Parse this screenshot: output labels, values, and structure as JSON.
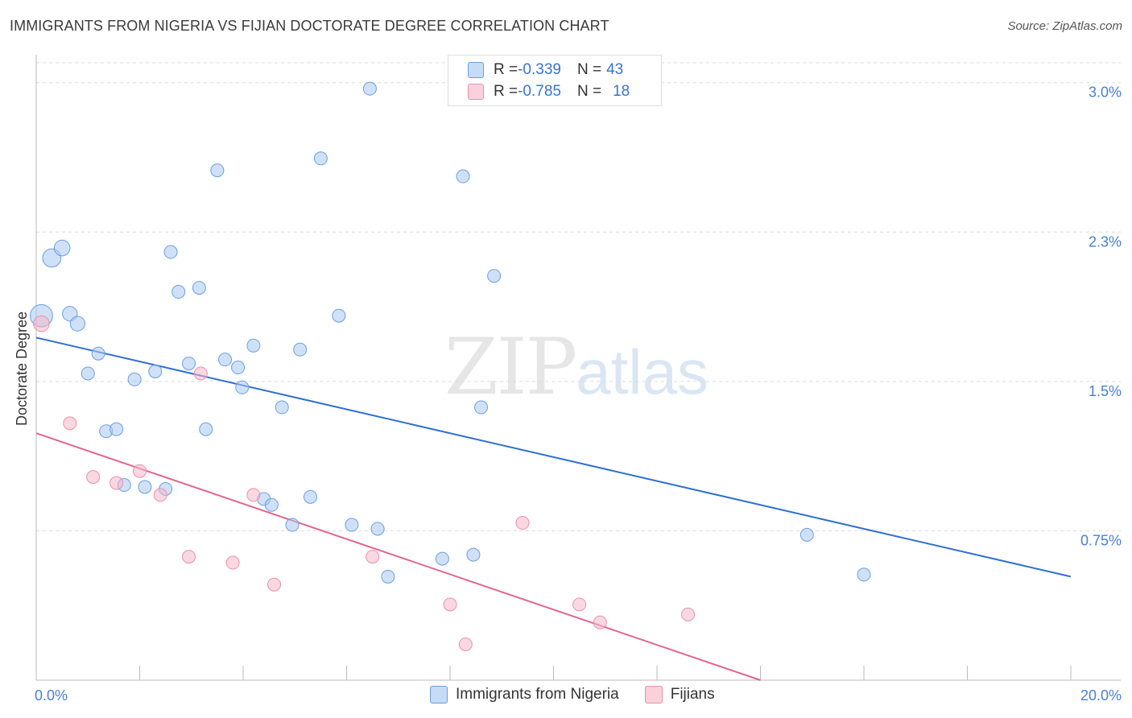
{
  "title": "IMMIGRANTS FROM NIGERIA VS FIJIAN DOCTORATE DEGREE CORRELATION CHART",
  "source": "Source: ZipAtlas.com",
  "watermark": {
    "zip": "ZIP",
    "atlas": "atlas"
  },
  "legend": {
    "rows": [
      {
        "r_label": "R = ",
        "r_value": "-0.339",
        "n_label": "N = ",
        "n_value": "43",
        "color": "#a9c8f0"
      },
      {
        "r_label": "R = ",
        "r_value": "-0.785",
        "n_label": "N = ",
        "n_value": "18",
        "color": "#f5b8cb"
      }
    ]
  },
  "bottom_legend": [
    {
      "label": "Immigrants from Nigeria",
      "color": "#a9c8f0"
    },
    {
      "label": "Fijians",
      "color": "#f5b8cb"
    }
  ],
  "chart_data": {
    "type": "scatter",
    "ylabel": "Doctorate Degree",
    "xlim": [
      0,
      20
    ],
    "ylim": [
      0,
      3.1
    ],
    "x_tick_labels": [
      {
        "value": 0,
        "label": "0.0%"
      },
      {
        "value": 20,
        "label": "20.0%"
      }
    ],
    "y_tick_labels": [
      {
        "value": 0.75,
        "label": "0.75%"
      },
      {
        "value": 1.5,
        "label": "1.5%"
      },
      {
        "value": 2.25,
        "label": "2.3%"
      },
      {
        "value": 3.0,
        "label": "3.0%"
      }
    ],
    "grid": true,
    "series": [
      {
        "name": "Immigrants from Nigeria",
        "color": "#6a9fe0",
        "fill": "#a9c8f0",
        "trend": {
          "x": [
            0,
            20
          ],
          "y": [
            1.72,
            0.52
          ],
          "color": "#2f6fd0"
        },
        "points": [
          {
            "x": 0.1,
            "y": 1.83,
            "s": 3
          },
          {
            "x": 0.3,
            "y": 2.12,
            "s": 2
          },
          {
            "x": 0.5,
            "y": 2.17,
            "s": 1.5
          },
          {
            "x": 0.65,
            "y": 1.84,
            "s": 1.3
          },
          {
            "x": 0.8,
            "y": 1.79,
            "s": 1.3
          },
          {
            "x": 1.0,
            "y": 1.54,
            "s": 1
          },
          {
            "x": 1.2,
            "y": 1.64,
            "s": 1
          },
          {
            "x": 1.35,
            "y": 1.25,
            "s": 1
          },
          {
            "x": 1.55,
            "y": 1.26,
            "s": 1
          },
          {
            "x": 1.7,
            "y": 0.98,
            "s": 1
          },
          {
            "x": 1.9,
            "y": 1.51,
            "s": 1
          },
          {
            "x": 2.1,
            "y": 0.97,
            "s": 1
          },
          {
            "x": 2.3,
            "y": 1.55,
            "s": 1
          },
          {
            "x": 2.5,
            "y": 0.96,
            "s": 1
          },
          {
            "x": 2.6,
            "y": 2.15,
            "s": 1
          },
          {
            "x": 2.75,
            "y": 1.95,
            "s": 1
          },
          {
            "x": 2.95,
            "y": 1.59,
            "s": 1
          },
          {
            "x": 3.15,
            "y": 1.97,
            "s": 1
          },
          {
            "x": 3.28,
            "y": 1.26,
            "s": 1
          },
          {
            "x": 3.5,
            "y": 2.56,
            "s": 1
          },
          {
            "x": 3.65,
            "y": 1.61,
            "s": 1
          },
          {
            "x": 3.9,
            "y": 1.57,
            "s": 1
          },
          {
            "x": 3.98,
            "y": 1.47,
            "s": 1
          },
          {
            "x": 4.2,
            "y": 1.68,
            "s": 1
          },
          {
            "x": 4.4,
            "y": 0.91,
            "s": 1
          },
          {
            "x": 4.55,
            "y": 0.88,
            "s": 1
          },
          {
            "x": 4.75,
            "y": 1.37,
            "s": 1
          },
          {
            "x": 4.95,
            "y": 0.78,
            "s": 1
          },
          {
            "x": 5.1,
            "y": 1.66,
            "s": 1
          },
          {
            "x": 5.3,
            "y": 0.92,
            "s": 1
          },
          {
            "x": 5.5,
            "y": 2.62,
            "s": 1
          },
          {
            "x": 5.85,
            "y": 1.83,
            "s": 1
          },
          {
            "x": 6.1,
            "y": 0.78,
            "s": 1
          },
          {
            "x": 6.45,
            "y": 2.97,
            "s": 1
          },
          {
            "x": 6.6,
            "y": 0.76,
            "s": 1
          },
          {
            "x": 6.8,
            "y": 0.52,
            "s": 1
          },
          {
            "x": 7.85,
            "y": 0.61,
            "s": 1
          },
          {
            "x": 8.25,
            "y": 2.53,
            "s": 1
          },
          {
            "x": 8.45,
            "y": 0.63,
            "s": 1
          },
          {
            "x": 8.6,
            "y": 1.37,
            "s": 1
          },
          {
            "x": 8.85,
            "y": 2.03,
            "s": 1
          },
          {
            "x": 14.9,
            "y": 0.73,
            "s": 1
          },
          {
            "x": 16.0,
            "y": 0.53,
            "s": 1
          }
        ]
      },
      {
        "name": "Fijians",
        "color": "#ea8fab",
        "fill": "#f5b8cb",
        "trend": {
          "x": [
            0,
            14.0
          ],
          "y": [
            1.24,
            0.0
          ],
          "color": "#e0668f"
        },
        "points": [
          {
            "x": 0.1,
            "y": 1.79,
            "s": 1.5
          },
          {
            "x": 0.65,
            "y": 1.29,
            "s": 1
          },
          {
            "x": 1.1,
            "y": 1.02,
            "s": 1
          },
          {
            "x": 1.55,
            "y": 0.99,
            "s": 1
          },
          {
            "x": 2.0,
            "y": 1.05,
            "s": 1
          },
          {
            "x": 2.4,
            "y": 0.93,
            "s": 1
          },
          {
            "x": 2.95,
            "y": 0.62,
            "s": 1
          },
          {
            "x": 3.18,
            "y": 1.54,
            "s": 1
          },
          {
            "x": 3.8,
            "y": 0.59,
            "s": 1
          },
          {
            "x": 4.2,
            "y": 0.93,
            "s": 1
          },
          {
            "x": 4.6,
            "y": 0.48,
            "s": 1
          },
          {
            "x": 6.5,
            "y": 0.62,
            "s": 1
          },
          {
            "x": 8.0,
            "y": 0.38,
            "s": 1
          },
          {
            "x": 8.3,
            "y": 0.18,
            "s": 1
          },
          {
            "x": 9.4,
            "y": 0.79,
            "s": 1
          },
          {
            "x": 10.5,
            "y": 0.38,
            "s": 1
          },
          {
            "x": 10.9,
            "y": 0.29,
            "s": 1
          },
          {
            "x": 12.6,
            "y": 0.33,
            "s": 1
          }
        ]
      }
    ]
  }
}
